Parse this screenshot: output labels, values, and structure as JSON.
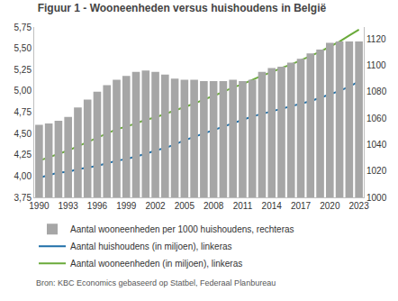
{
  "chart_data": {
    "type": "combo",
    "title": "Figuur 1 - Wooneenheden versus huishoudens in België",
    "source": "Bron: KBC Economics gebaseerd op Statbel, Federaal Planbureau",
    "x": [
      1990,
      1991,
      1992,
      1993,
      1994,
      1995,
      1996,
      1997,
      1998,
      1999,
      2000,
      2001,
      2002,
      2003,
      2004,
      2005,
      2006,
      2007,
      2008,
      2009,
      2010,
      2011,
      2012,
      2013,
      2014,
      2015,
      2016,
      2017,
      2018,
      2019,
      2020,
      2021,
      2022,
      2023
    ],
    "xlim": [
      1989.5,
      2023.5
    ],
    "xticks": [
      1990,
      1993,
      1996,
      1999,
      2002,
      2005,
      2008,
      2011,
      2014,
      2017,
      2020,
      2023
    ],
    "ylim": [
      3.75,
      5.75
    ],
    "yticks": [
      {
        "value": 3.75,
        "label": "3,75"
      },
      {
        "value": 4,
        "label": "4,00"
      },
      {
        "value": 4.25,
        "label": "4,25"
      },
      {
        "value": 4.5,
        "label": "4,50"
      },
      {
        "value": 4.75,
        "label": "4,75"
      },
      {
        "value": 5,
        "label": "5,00"
      },
      {
        "value": 5.25,
        "label": "5,25"
      },
      {
        "value": 5.5,
        "label": "5,50"
      },
      {
        "value": 5.75,
        "label": "5,75"
      }
    ],
    "y2lim": [
      1000,
      1129
    ],
    "y2ticks": [
      1000,
      1020,
      1040,
      1060,
      1080,
      1100,
      1120
    ],
    "grid": false,
    "legend": "bottom",
    "series": [
      {
        "name": "Aantal wooneenheden per 1000 huishoudens, rechteras",
        "type": "bar",
        "axis": "y2",
        "color": "#a6a6a6",
        "values": [
          1055,
          1056,
          1058,
          1061,
          1068,
          1074,
          1080,
          1085,
          1089,
          1092,
          1095,
          1096,
          1095,
          1093,
          1090,
          1089,
          1089,
          1088,
          1088,
          1088,
          1089,
          1088,
          1089,
          1095,
          1098,
          1099,
          1102,
          1105,
          1109,
          1112,
          1117,
          1118,
          1118,
          1118
        ]
      },
      {
        "name": "Aantal huishoudens (in miljoen), linkeras",
        "type": "line",
        "axis": "y",
        "color": "#1f6fa8",
        "values": [
          3.98,
          4.01,
          4.04,
          4.05,
          4.08,
          4.1,
          4.12,
          4.15,
          4.18,
          4.2,
          4.23,
          4.26,
          4.3,
          4.33,
          4.37,
          4.42,
          4.46,
          4.5,
          4.54,
          4.58,
          4.62,
          4.66,
          4.7,
          4.73,
          4.76,
          4.79,
          4.82,
          4.85,
          4.88,
          4.92,
          4.96,
          5.0,
          5.05,
          5.11
        ]
      },
      {
        "name": "Aantal wooneenheden (in miljoen), linkeras",
        "type": "line",
        "axis": "y",
        "color": "#6aaa3a",
        "values": [
          4.18,
          4.22,
          4.26,
          4.3,
          4.35,
          4.4,
          4.45,
          4.5,
          4.55,
          4.58,
          4.62,
          4.66,
          4.69,
          4.73,
          4.77,
          4.81,
          4.85,
          4.9,
          4.94,
          4.99,
          5.04,
          5.08,
          5.13,
          5.18,
          5.22,
          5.27,
          5.31,
          5.36,
          5.41,
          5.46,
          5.52,
          5.58,
          5.65,
          5.72
        ]
      }
    ]
  }
}
